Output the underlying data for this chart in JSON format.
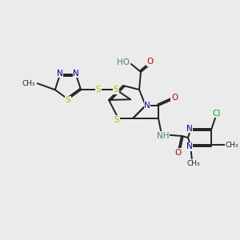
{
  "bg_color": "#ebebeb",
  "bond_color": "#222222",
  "N_color": "#0000cc",
  "S_color": "#bbbb00",
  "O_color": "#cc0000",
  "Cl_color": "#00bb00",
  "H_color": "#4a8080",
  "lw": 1.4,
  "fs": 7.5,
  "fs_small": 6.5,
  "xlim": [
    0.0,
    3.0
  ],
  "ylim": [
    0.0,
    3.0
  ]
}
